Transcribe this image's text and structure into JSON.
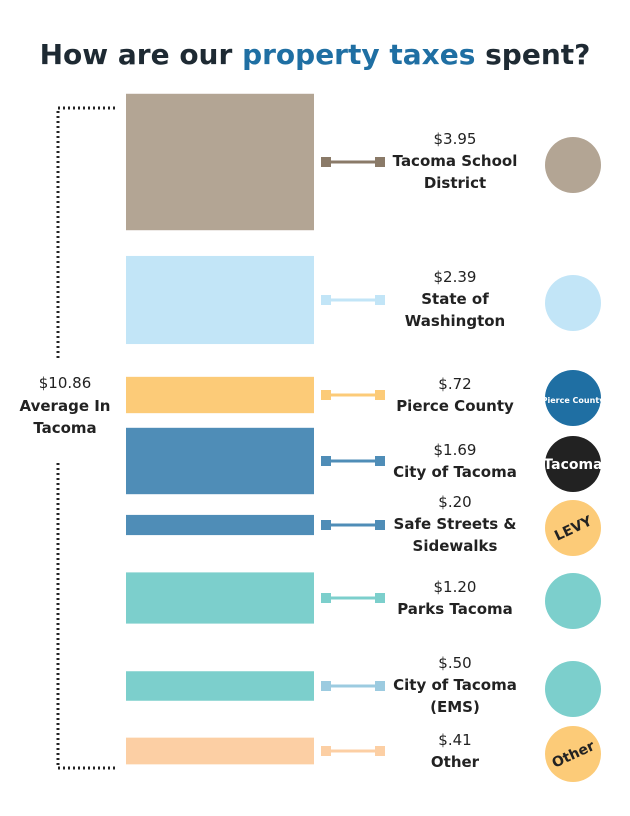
{
  "chart_data": {
    "type": "bar",
    "title": {
      "before": "How are our",
      "highlight": "property taxes",
      "after": "spent?",
      "highlight_color": "#1f6fa3"
    },
    "total": {
      "value_label": "$10.86",
      "label": "Average In Tacoma"
    },
    "categories": [
      "Tacoma School District",
      "State of Washington",
      "Pierce County",
      "City of Tacoma",
      "Safe Streets & Sidewalks",
      "Parks Tacoma",
      "City of Tacoma (EMS)",
      "Other"
    ],
    "values": [
      3.95,
      2.39,
      0.72,
      1.69,
      0.2,
      1.2,
      0.5,
      0.41
    ],
    "value_labels": [
      "$3.95",
      "$2.39",
      "$.72",
      "$1.69",
      "$.20",
      "$1.20",
      "$.50",
      "$.41"
    ],
    "colors": [
      "#b3a594",
      "#c2e5f7",
      "#fccb78",
      "#4f8db7",
      "#4f8db7",
      "#7ccfcc",
      "#7ccfcc",
      "#fccfa4"
    ],
    "connector_colors": [
      "#8a7a68",
      "#c2e5f7",
      "#fccb78",
      "#4f8db7",
      "#4f8db7",
      "#7ccfcc",
      "#9ccbe0",
      "#fccfa4"
    ],
    "icon_colors": [
      "#b3a594",
      "#c2e5f7",
      "#1f6fa3",
      "#222222",
      "#fccb78",
      "#7ccfcc",
      "#7ccfcc",
      "#fccb78"
    ],
    "icon_labels": [
      null,
      null,
      "Pierce County",
      "Tacoma",
      "LEVY",
      null,
      null,
      "Other"
    ]
  }
}
